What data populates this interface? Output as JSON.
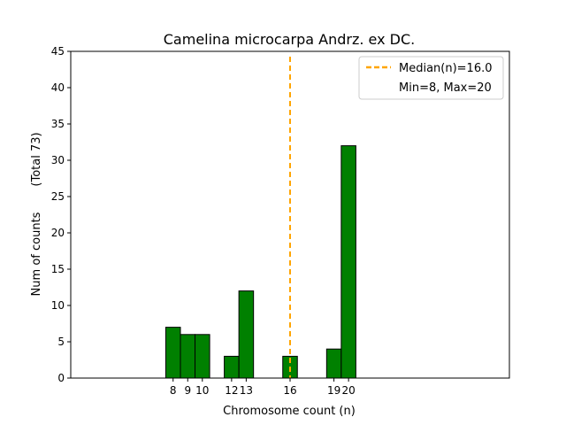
{
  "chart_data": {
    "type": "bar",
    "title": "Camelina microcarpa Andrz. ex DC.",
    "xlabel": "Chromosome count (n)",
    "ylabel": "Num of counts",
    "ylabel_total": "(Total 73)",
    "xlim": [
      1,
      31
    ],
    "ylim": [
      0,
      45
    ],
    "yticks": [
      0,
      5,
      10,
      15,
      20,
      25,
      30,
      35,
      40,
      45
    ],
    "xticks": [
      8,
      9,
      10,
      12,
      13,
      16,
      19,
      20
    ],
    "bars": [
      {
        "x": 8,
        "count": 7
      },
      {
        "x": 9,
        "count": 6
      },
      {
        "x": 10,
        "count": 6
      },
      {
        "x": 11,
        "count": 0
      },
      {
        "x": 12,
        "count": 3
      },
      {
        "x": 13,
        "count": 12
      },
      {
        "x": 14,
        "count": 0
      },
      {
        "x": 15,
        "count": 0
      },
      {
        "x": 16,
        "count": 3
      },
      {
        "x": 17,
        "count": 0
      },
      {
        "x": 18,
        "count": 0
      },
      {
        "x": 19,
        "count": 4
      },
      {
        "x": 20,
        "count": 32
      },
      {
        "x": 21,
        "count": 0
      },
      {
        "x": 22,
        "count": 0
      },
      {
        "x": 23,
        "count": 0
      }
    ],
    "bar_color": "#008000",
    "median": 16.0,
    "median_color": "#FFA500",
    "legend": {
      "position": "top-right",
      "entries": [
        "Median(n)=16.0",
        "Min=8, Max=20"
      ]
    }
  }
}
